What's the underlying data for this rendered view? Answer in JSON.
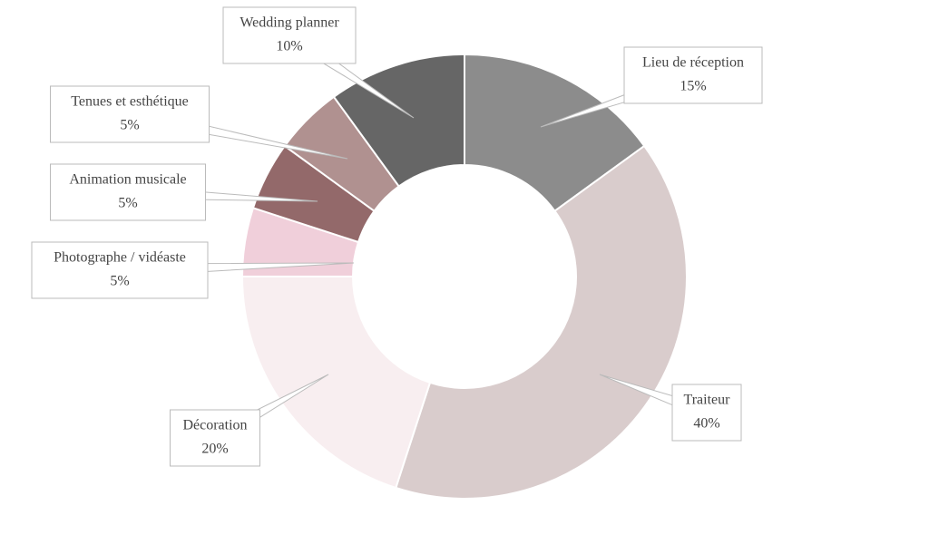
{
  "chart_data": {
    "type": "pie",
    "categories": [
      "Lieu de réception",
      "Traiteur",
      "Décoration",
      "Photographe / vidéaste",
      "Animation musicale",
      "Tenues et esthétique",
      "Wedding planner"
    ],
    "values": [
      15,
      40,
      20,
      5,
      5,
      5,
      10
    ],
    "value_labels": [
      "15%",
      "40%",
      "20%",
      "5%",
      "5%",
      "5%",
      "10%"
    ],
    "colors": [
      "#8c8c8c",
      "#d9cccc",
      "#f8eef0",
      "#f0cfda",
      "#93696a",
      "#b09190",
      "#666666"
    ]
  }
}
